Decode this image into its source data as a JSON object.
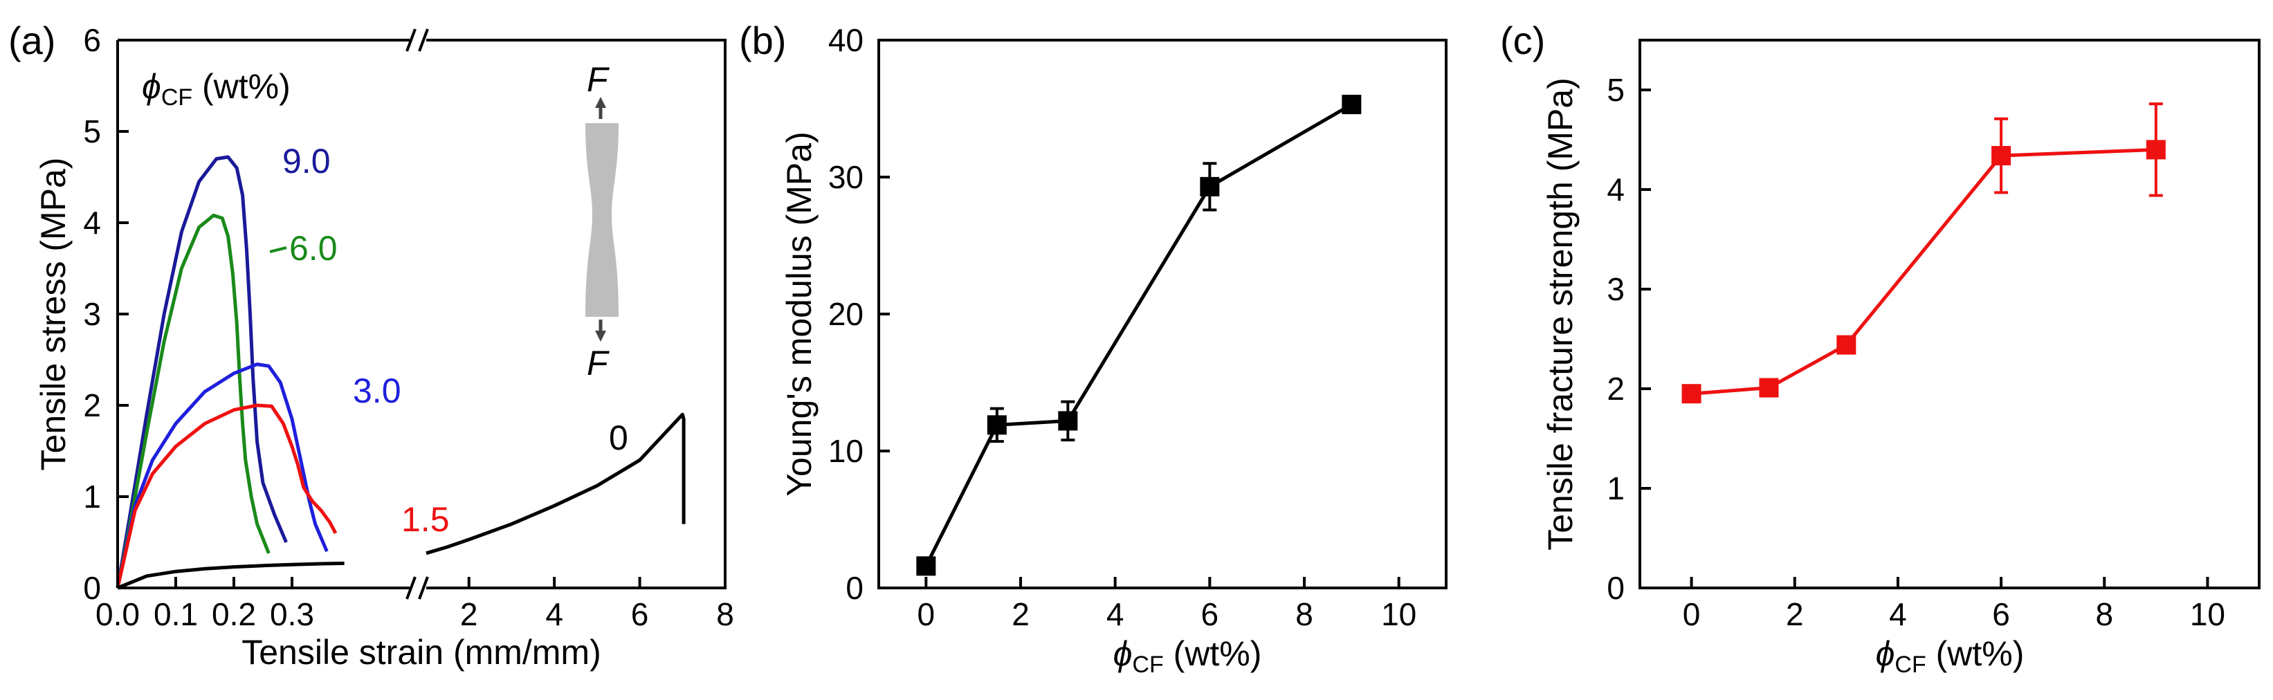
{
  "chart_data": [
    {
      "panel": "(a)",
      "type": "line",
      "xlabel": "Tensile strain (mm/mm)",
      "ylabel": "Tensile stress (MPa)",
      "ylim": [
        0,
        6
      ],
      "yticks": [
        "0",
        "1",
        "2",
        "3",
        "4",
        "5",
        "6"
      ],
      "x_left": {
        "range": [
          0,
          0.5
        ],
        "ticks": [
          0.0,
          0.1,
          0.2,
          0.3
        ],
        "ticklabels": [
          "0.0",
          "0.1",
          "0.2",
          "0.3"
        ]
      },
      "x_right": {
        "range": [
          1,
          8
        ],
        "ticks": [
          2,
          4,
          6,
          8
        ],
        "ticklabels": [
          "2",
          "4",
          "6",
          "8"
        ]
      },
      "legend_title": {
        "symbol": "ϕ",
        "sub": "CF",
        "rest": " (wt%)"
      },
      "inset": {
        "top_label": "F",
        "bottom_label": "F"
      },
      "series": [
        {
          "name": "9.0",
          "color": "#1a1a9a",
          "segment": "left",
          "x": [
            0,
            0.02,
            0.05,
            0.08,
            0.11,
            0.14,
            0.17,
            0.19,
            0.205,
            0.215,
            0.222,
            0.228,
            0.233,
            0.24,
            0.25,
            0.27,
            0.29
          ],
          "y": [
            0,
            0.75,
            1.9,
            3.0,
            3.9,
            4.45,
            4.7,
            4.72,
            4.6,
            4.3,
            3.7,
            3.0,
            2.3,
            1.6,
            1.15,
            0.8,
            0.5
          ]
        },
        {
          "name": "6.0",
          "color": "#1a8a1a",
          "segment": "left",
          "x": [
            0,
            0.02,
            0.05,
            0.08,
            0.11,
            0.14,
            0.165,
            0.18,
            0.19,
            0.198,
            0.205,
            0.21,
            0.215,
            0.22,
            0.23,
            0.24,
            0.26
          ],
          "y": [
            0,
            0.65,
            1.7,
            2.7,
            3.5,
            3.95,
            4.08,
            4.05,
            3.85,
            3.45,
            2.9,
            2.3,
            1.8,
            1.4,
            1.0,
            0.7,
            0.38
          ]
        },
        {
          "name": "3.0",
          "color": "#1f1fdd",
          "segment": "left",
          "x": [
            0,
            0.03,
            0.06,
            0.1,
            0.15,
            0.2,
            0.24,
            0.26,
            0.28,
            0.3,
            0.31,
            0.32,
            0.33,
            0.34,
            0.35,
            0.36
          ],
          "y": [
            0,
            0.9,
            1.4,
            1.8,
            2.15,
            2.35,
            2.45,
            2.43,
            2.25,
            1.85,
            1.55,
            1.25,
            0.95,
            0.7,
            0.55,
            0.4
          ]
        },
        {
          "name": "1.5",
          "color": "#ee1111",
          "segment": "left",
          "x": [
            0,
            0.03,
            0.06,
            0.1,
            0.15,
            0.2,
            0.24,
            0.265,
            0.285,
            0.3,
            0.31,
            0.32,
            0.335,
            0.35,
            0.365,
            0.375
          ],
          "y": [
            0,
            0.85,
            1.25,
            1.55,
            1.8,
            1.95,
            2.0,
            1.99,
            1.8,
            1.55,
            1.35,
            1.1,
            0.95,
            0.85,
            0.72,
            0.6
          ]
        },
        {
          "name": "0",
          "color": "#000000",
          "segment": "both",
          "x": [
            0,
            0.05,
            0.1,
            0.15,
            0.2,
            0.25,
            0.3,
            0.35,
            0.39
          ],
          "y": [
            0,
            0.13,
            0.18,
            0.21,
            0.23,
            0.245,
            0.255,
            0.265,
            0.27
          ],
          "x_right": [
            1.0,
            1.5,
            2.0,
            3.0,
            4.0,
            5.0,
            6.0,
            7.0,
            7.03,
            7.03
          ],
          "y_right": [
            0.38,
            0.45,
            0.53,
            0.7,
            0.9,
            1.12,
            1.4,
            1.9,
            1.85,
            0.7
          ]
        }
      ]
    },
    {
      "panel": "(b)",
      "type": "line",
      "xlabel": {
        "symbol": "ϕ",
        "sub": "CF",
        "rest": " (wt%)"
      },
      "ylabel": "Young's modulus (MPa)",
      "xlim": [
        -1,
        11
      ],
      "ylim": [
        0,
        40
      ],
      "xticks": [
        0,
        2,
        4,
        6,
        8,
        10
      ],
      "yticks": [
        0,
        10,
        20,
        30,
        40
      ],
      "color": "#000000",
      "x": [
        0,
        1.5,
        3,
        6,
        9
      ],
      "y": [
        1.6,
        11.9,
        12.2,
        29.3,
        35.3
      ],
      "yerr": [
        0.5,
        1.2,
        1.4,
        1.7,
        0.6
      ]
    },
    {
      "panel": "(c)",
      "type": "line",
      "xlabel": {
        "symbol": "ϕ",
        "sub": "CF",
        "rest": " (wt%)"
      },
      "ylabel": "Tensile fracture strength (MPa)",
      "xlim": [
        -1,
        11
      ],
      "ylim": [
        0,
        5.5
      ],
      "xticks": [
        0,
        2,
        4,
        6,
        8,
        10
      ],
      "yticks": [
        0,
        1,
        2,
        3,
        4,
        5
      ],
      "color": "#ee1111",
      "x": [
        0,
        1.5,
        3,
        6,
        9
      ],
      "y": [
        1.95,
        2.01,
        2.44,
        4.34,
        4.4
      ],
      "yerr": [
        0.06,
        0.07,
        0.06,
        0.37,
        0.46
      ]
    }
  ]
}
